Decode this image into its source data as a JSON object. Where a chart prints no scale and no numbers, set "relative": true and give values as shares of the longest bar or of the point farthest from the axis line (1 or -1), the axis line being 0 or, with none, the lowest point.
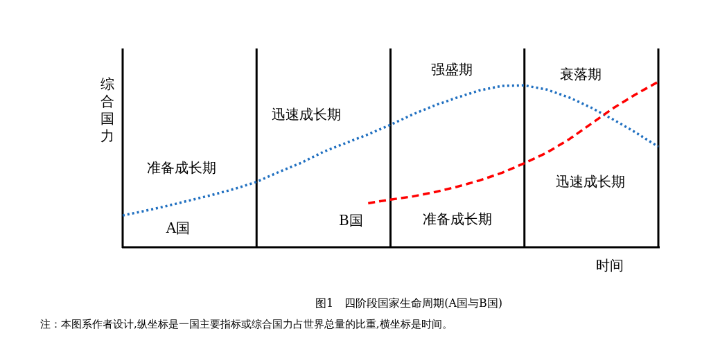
{
  "chart_data": {
    "type": "line",
    "relative": true,
    "title": "图1　四阶段国家生命周期(A国与B国)",
    "xlabel": "时间",
    "ylabel": "综合国力",
    "categories": [
      null,
      null,
      null,
      null,
      null,
      null,
      null,
      null,
      null,
      null,
      null,
      null,
      null,
      null,
      null,
      null,
      null,
      null,
      null,
      null,
      null,
      null,
      null,
      null,
      null
    ],
    "series": [
      {
        "name": "A国",
        "color": "#1f6fc0",
        "line_style": "dotted",
        "values": [
          0.192,
          0.22,
          0.25,
          0.283,
          0.316,
          0.352,
          0.395,
          0.455,
          0.51,
          0.577,
          0.63,
          0.682,
          0.74,
          0.803,
          0.858,
          0.905,
          0.948,
          0.975,
          0.978,
          0.953,
          0.905,
          0.843,
          0.77,
          0.692,
          0.607
        ]
      },
      {
        "name": "B国",
        "color": "#ff0000",
        "line_style": "dashed",
        "values": [
          null,
          null,
          null,
          null,
          null,
          null,
          null,
          null,
          null,
          null,
          null,
          0.266,
          0.288,
          0.307,
          0.334,
          0.366,
          0.404,
          0.45,
          0.508,
          0.571,
          0.652,
          0.747,
          0.842,
          0.925,
          1.0
        ]
      }
    ],
    "grid": "x",
    "annotations": [
      "准备成长期",
      "迅速成长期",
      "强盛期",
      "衰落期",
      "准备成长期",
      "迅速成长期",
      "注：本图系作者设计,纵坐标是一国主要指标或综合国力占世界总量的比重,横坐标是时间。"
    ]
  }
}
